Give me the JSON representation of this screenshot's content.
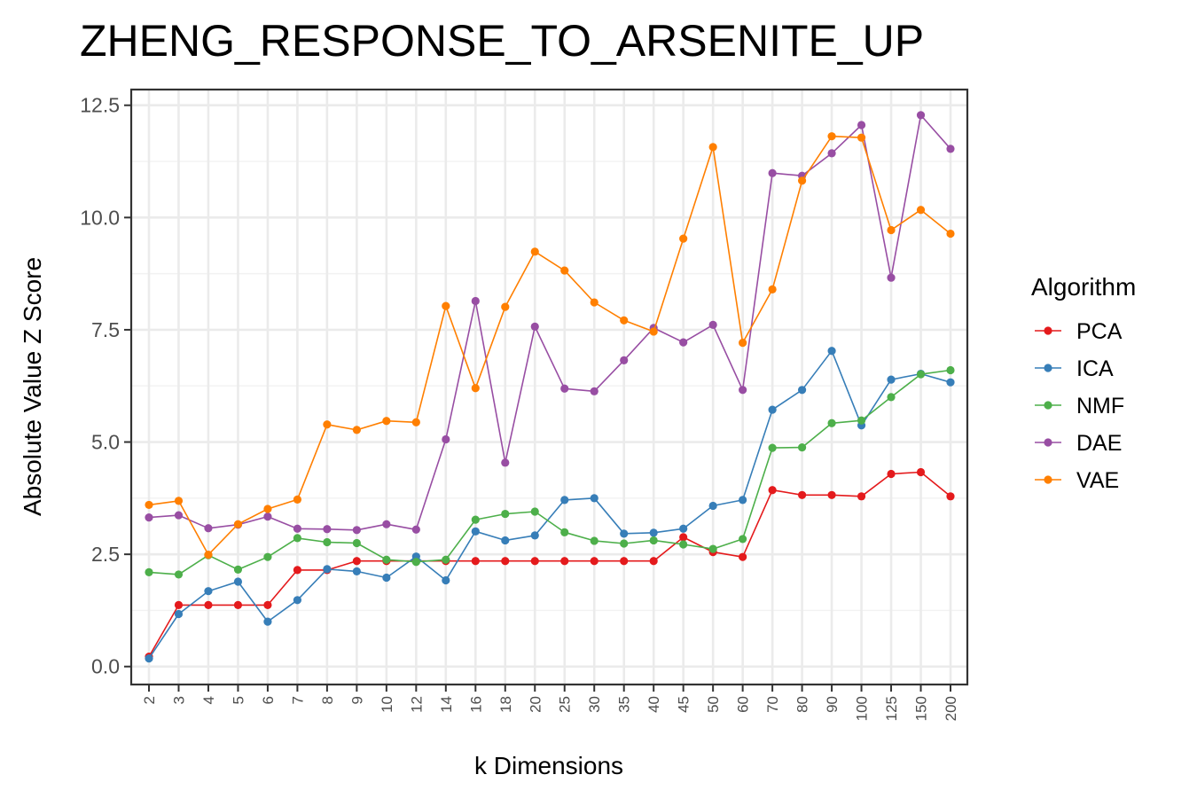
{
  "chart_data": {
    "type": "line",
    "title": "ZHENG_RESPONSE_TO_ARSENITE_UP",
    "xlabel": "k Dimensions",
    "ylabel": "Absolute Value Z Score",
    "categories": [
      "2",
      "3",
      "4",
      "5",
      "6",
      "7",
      "8",
      "9",
      "10",
      "12",
      "14",
      "16",
      "18",
      "20",
      "25",
      "30",
      "35",
      "40",
      "45",
      "50",
      "60",
      "70",
      "80",
      "90",
      "100",
      "125",
      "150",
      "200"
    ],
    "ylim": [
      -0.4,
      12.85
    ],
    "yticks": [
      0.0,
      2.5,
      5.0,
      7.5,
      10.0,
      12.5
    ],
    "ytick_labels": [
      "0.0",
      "2.5",
      "5.0",
      "7.5",
      "10.0",
      "12.5"
    ],
    "grid": true,
    "legend": {
      "title": "Algorithm",
      "position": "right"
    },
    "series": [
      {
        "name": "PCA",
        "color": "#e41a1c",
        "values": [
          0.22,
          1.37,
          1.37,
          1.37,
          1.37,
          2.15,
          2.15,
          2.35,
          2.35,
          2.35,
          2.35,
          2.35,
          2.35,
          2.35,
          2.35,
          2.35,
          2.35,
          2.35,
          2.88,
          2.55,
          2.44,
          3.93,
          3.82,
          3.82,
          3.79,
          4.29,
          4.33,
          3.79
        ]
      },
      {
        "name": "ICA",
        "color": "#377eb8",
        "values": [
          0.18,
          1.17,
          1.68,
          1.89,
          1.0,
          1.48,
          2.17,
          2.12,
          1.98,
          2.45,
          1.92,
          3.01,
          2.81,
          2.92,
          3.71,
          3.75,
          2.96,
          2.98,
          3.07,
          3.58,
          3.71,
          5.72,
          6.16,
          7.03,
          5.37,
          6.39,
          6.52,
          6.33
        ]
      },
      {
        "name": "NMF",
        "color": "#4daf4a",
        "values": [
          2.1,
          2.05,
          2.48,
          2.16,
          2.44,
          2.86,
          2.77,
          2.75,
          2.38,
          2.33,
          2.38,
          3.27,
          3.4,
          3.45,
          2.99,
          2.8,
          2.74,
          2.81,
          2.72,
          2.62,
          2.84,
          4.87,
          4.88,
          5.42,
          5.48,
          6.0,
          6.51,
          6.6
        ]
      },
      {
        "name": "DAE",
        "color": "#984ea3",
        "values": [
          3.32,
          3.37,
          3.08,
          3.16,
          3.34,
          3.07,
          3.06,
          3.04,
          3.17,
          3.05,
          5.06,
          8.14,
          4.54,
          7.57,
          6.19,
          6.13,
          6.82,
          7.54,
          7.22,
          7.61,
          6.16,
          10.99,
          10.93,
          11.43,
          12.06,
          8.66,
          12.28,
          11.53
        ]
      },
      {
        "name": "VAE",
        "color": "#ff7f00",
        "values": [
          3.6,
          3.69,
          2.49,
          3.17,
          3.51,
          3.72,
          5.39,
          5.27,
          5.47,
          5.44,
          8.03,
          6.2,
          8.01,
          9.24,
          8.82,
          8.11,
          7.71,
          7.46,
          9.53,
          11.57,
          7.21,
          8.4,
          10.82,
          11.81,
          11.78,
          9.72,
          10.17,
          9.64
        ]
      }
    ]
  }
}
